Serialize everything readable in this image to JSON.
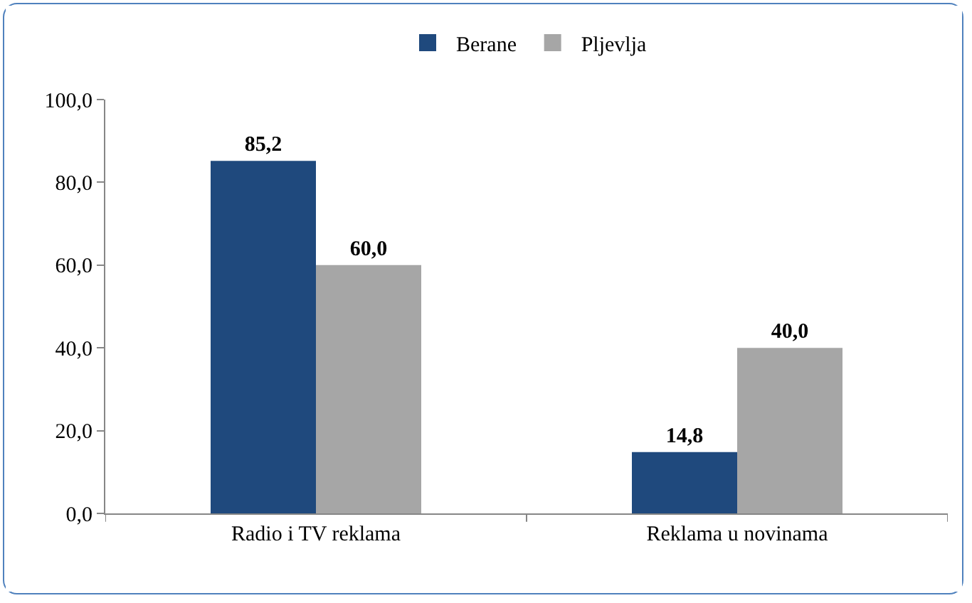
{
  "chart_data": {
    "type": "bar",
    "categories": [
      "Radio i TV reklama",
      "Reklama u novinama"
    ],
    "series": [
      {
        "name": "Berane",
        "color": "#1f497d",
        "values": [
          85.2,
          14.8
        ],
        "value_labels": [
          "85,2",
          "14,8"
        ]
      },
      {
        "name": "Pljevlja",
        "color": "#a6a6a6",
        "values": [
          60.0,
          40.0
        ],
        "value_labels": [
          "60,0",
          "40,0"
        ]
      }
    ],
    "ylim": [
      0,
      100
    ],
    "yticks": [
      {
        "value": 0,
        "label": "0,0"
      },
      {
        "value": 20,
        "label": "20,0"
      },
      {
        "value": 40,
        "label": "40,0"
      },
      {
        "value": 60,
        "label": "60,0"
      },
      {
        "value": 80,
        "label": "80,0"
      },
      {
        "value": 100,
        "label": "100,0"
      }
    ],
    "grid": false,
    "legend": "top"
  }
}
